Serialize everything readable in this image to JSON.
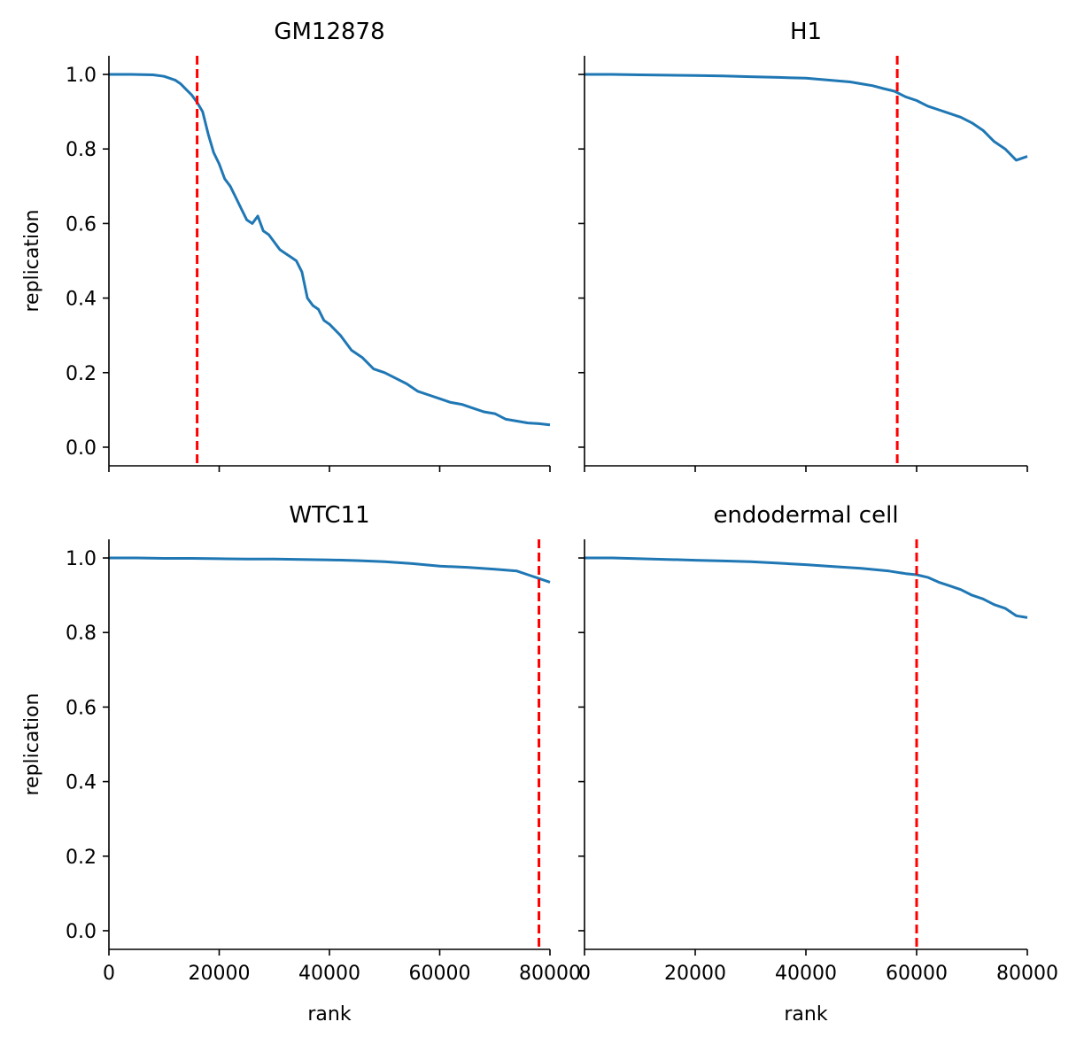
{
  "chart_data": [
    {
      "type": "line",
      "title": "GM12878",
      "xlabel": "",
      "ylabel": "replication",
      "xlim": [
        0,
        80000
      ],
      "ylim": [
        -0.05,
        1.05
      ],
      "xticks": [
        0,
        20000,
        40000,
        60000,
        80000
      ],
      "yticks": [
        0.0,
        0.2,
        0.4,
        0.6,
        0.8,
        1.0
      ],
      "xtick_labels": [
        "",
        "",
        "",
        "",
        ""
      ],
      "ytick_labels": [
        "0.0",
        "0.2",
        "0.4",
        "0.6",
        "0.8",
        "1.0"
      ],
      "vline": 16000,
      "series_color": "#1f77b4",
      "vline_color": "#ff0000",
      "x": [
        0,
        4000,
        8000,
        10000,
        12000,
        13000,
        14000,
        15000,
        16000,
        17000,
        18000,
        19000,
        20000,
        21000,
        22000,
        23000,
        24000,
        25000,
        26000,
        27000,
        28000,
        29000,
        30000,
        31000,
        32000,
        33000,
        34000,
        35000,
        36000,
        37000,
        38000,
        39000,
        40000,
        42000,
        44000,
        46000,
        48000,
        50000,
        52000,
        54000,
        56000,
        58000,
        60000,
        62000,
        64000,
        66000,
        68000,
        70000,
        72000,
        74000,
        76000,
        78000,
        80000
      ],
      "y": [
        1.0,
        1.0,
        0.999,
        0.995,
        0.985,
        0.975,
        0.96,
        0.945,
        0.925,
        0.9,
        0.84,
        0.79,
        0.76,
        0.72,
        0.7,
        0.67,
        0.64,
        0.61,
        0.6,
        0.62,
        0.58,
        0.57,
        0.55,
        0.53,
        0.52,
        0.51,
        0.5,
        0.47,
        0.4,
        0.38,
        0.37,
        0.34,
        0.33,
        0.3,
        0.26,
        0.24,
        0.21,
        0.2,
        0.185,
        0.17,
        0.15,
        0.14,
        0.13,
        0.12,
        0.115,
        0.105,
        0.095,
        0.09,
        0.075,
        0.07,
        0.065,
        0.063,
        0.06
      ]
    },
    {
      "type": "line",
      "title": "H1",
      "xlabel": "",
      "ylabel": "",
      "xlim": [
        0,
        80000
      ],
      "ylim": [
        -0.05,
        1.05
      ],
      "xticks": [
        0,
        20000,
        40000,
        60000,
        80000
      ],
      "yticks": [
        0.0,
        0.2,
        0.4,
        0.6,
        0.8,
        1.0
      ],
      "xtick_labels": [
        "",
        "",
        "",
        "",
        ""
      ],
      "ytick_labels": [
        "",
        "",
        "",
        "",
        "",
        ""
      ],
      "vline": 56500,
      "series_color": "#1f77b4",
      "vline_color": "#ff0000",
      "x": [
        0,
        5000,
        10000,
        15000,
        20000,
        25000,
        30000,
        35000,
        40000,
        44000,
        48000,
        50000,
        52000,
        54000,
        56000,
        58000,
        60000,
        62000,
        64000,
        66000,
        68000,
        70000,
        72000,
        74000,
        76000,
        78000,
        80000
      ],
      "y": [
        1.0,
        1.0,
        0.999,
        0.998,
        0.997,
        0.996,
        0.994,
        0.992,
        0.99,
        0.985,
        0.98,
        0.975,
        0.97,
        0.962,
        0.955,
        0.94,
        0.93,
        0.915,
        0.905,
        0.895,
        0.885,
        0.87,
        0.85,
        0.82,
        0.8,
        0.77,
        0.78
      ]
    },
    {
      "type": "line",
      "title": "WTC11",
      "xlabel": "rank",
      "ylabel": "replication",
      "xlim": [
        0,
        80000
      ],
      "ylim": [
        -0.05,
        1.05
      ],
      "xticks": [
        0,
        20000,
        40000,
        60000,
        80000
      ],
      "yticks": [
        0.0,
        0.2,
        0.4,
        0.6,
        0.8,
        1.0
      ],
      "xtick_labels": [
        "0",
        "20000",
        "40000",
        "60000",
        "80000"
      ],
      "ytick_labels": [
        "0.0",
        "0.2",
        "0.4",
        "0.6",
        "0.8",
        "1.0"
      ],
      "vline": 78000,
      "series_color": "#1f77b4",
      "vline_color": "#ff0000",
      "x": [
        0,
        5000,
        10000,
        15000,
        20000,
        25000,
        30000,
        35000,
        40000,
        45000,
        50000,
        55000,
        60000,
        65000,
        70000,
        74000,
        76000,
        78000,
        80000
      ],
      "y": [
        1.0,
        1.0,
        0.999,
        0.999,
        0.998,
        0.997,
        0.997,
        0.996,
        0.995,
        0.993,
        0.99,
        0.985,
        0.978,
        0.975,
        0.97,
        0.965,
        0.955,
        0.945,
        0.935
      ]
    },
    {
      "type": "line",
      "title": "endodermal cell",
      "xlabel": "rank",
      "ylabel": "",
      "xlim": [
        0,
        80000
      ],
      "ylim": [
        -0.05,
        1.05
      ],
      "xticks": [
        0,
        20000,
        40000,
        60000,
        80000
      ],
      "yticks": [
        0.0,
        0.2,
        0.4,
        0.6,
        0.8,
        1.0
      ],
      "xtick_labels": [
        "0",
        "20000",
        "40000",
        "60000",
        "80000"
      ],
      "ytick_labels": [
        "",
        "",
        "",
        "",
        "",
        ""
      ],
      "vline": 60000,
      "series_color": "#1f77b4",
      "vline_color": "#ff0000",
      "x": [
        0,
        5000,
        10000,
        15000,
        20000,
        25000,
        30000,
        35000,
        40000,
        45000,
        50000,
        55000,
        58000,
        60000,
        62000,
        64000,
        66000,
        68000,
        70000,
        72000,
        74000,
        76000,
        78000,
        80000
      ],
      "y": [
        1.0,
        1.0,
        0.998,
        0.996,
        0.994,
        0.992,
        0.99,
        0.986,
        0.982,
        0.977,
        0.972,
        0.965,
        0.958,
        0.955,
        0.948,
        0.935,
        0.925,
        0.915,
        0.9,
        0.89,
        0.875,
        0.865,
        0.845,
        0.84
      ]
    }
  ]
}
